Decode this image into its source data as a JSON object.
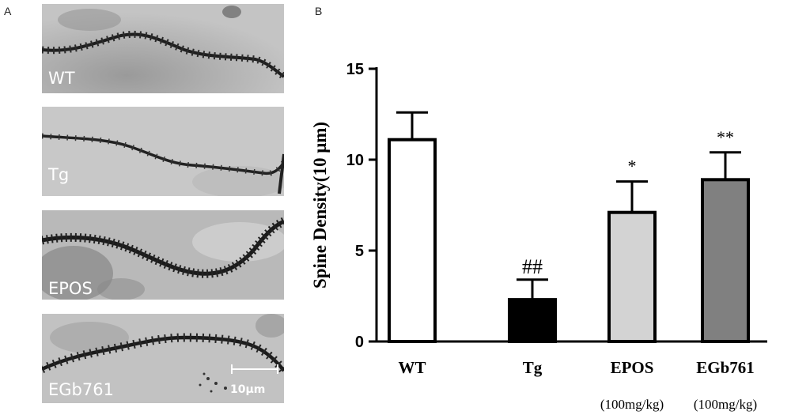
{
  "figure": {
    "panel_a_label": "A",
    "panel_b_label": "B"
  },
  "micrographs": [
    {
      "label": "WT"
    },
    {
      "label": "Tg"
    },
    {
      "label": "EPOS"
    },
    {
      "label": "EGb761"
    }
  ],
  "scale_bar": {
    "label": "10μm"
  },
  "chart_data": {
    "type": "bar",
    "categories": [
      "WT",
      "Tg",
      "EPOS",
      "EGb761"
    ],
    "sublabels": [
      "",
      "",
      "(100mg/kg)",
      "(100mg/kg)"
    ],
    "values": [
      11.1,
      2.3,
      7.1,
      8.9
    ],
    "errors": [
      1.5,
      1.1,
      1.7,
      1.5
    ],
    "annotations": [
      "",
      "##",
      "*",
      "**"
    ],
    "colors": [
      "#ffffff",
      "#000000",
      "#d3d3d3",
      "#808080"
    ],
    "ylabel": "Spine Density(10 μm)",
    "ylim": [
      0,
      15
    ],
    "yticks": [
      0,
      5,
      10,
      15
    ],
    "grid": false
  }
}
